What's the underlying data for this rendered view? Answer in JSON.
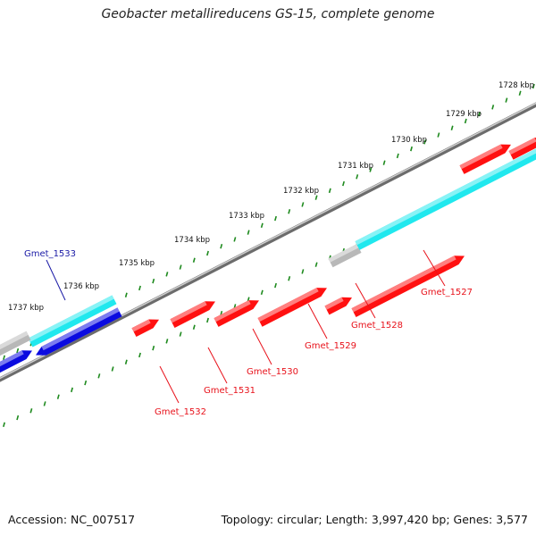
{
  "title": "Geobacter metallireducens GS-15, complete genome",
  "footer": {
    "accession": "Accession: NC_007517",
    "genome_info": "Topology: circular; Length: 3,997,420 bp; Genes: 3,577"
  },
  "ticks": [
    "1728 kbp",
    "1729 kbp",
    "1730 kbp",
    "1731 kbp",
    "1732 kbp",
    "1733 kbp",
    "1734 kbp",
    "1735 kbp",
    "1736 kbp",
    "1737 kbp"
  ],
  "genes": [
    {
      "id": "Gmet_1527",
      "color": "#e8121b"
    },
    {
      "id": "Gmet_1528",
      "color": "#e8121b"
    },
    {
      "id": "Gmet_1529",
      "color": "#e8121b"
    },
    {
      "id": "Gmet_1530",
      "color": "#e8121b"
    },
    {
      "id": "Gmet_1531",
      "color": "#e8121b"
    },
    {
      "id": "Gmet_1532",
      "color": "#e8121b"
    },
    {
      "id": "Gmet_1533",
      "color": "#1a1aa6"
    }
  ],
  "colors": {
    "forward_cds": "#ff1010",
    "reverse_cds": "#0b0be0",
    "rna": "#20e8ee",
    "other": "#b8b8b8",
    "backbone": "#808080",
    "ticks": "#1e8a1e"
  }
}
